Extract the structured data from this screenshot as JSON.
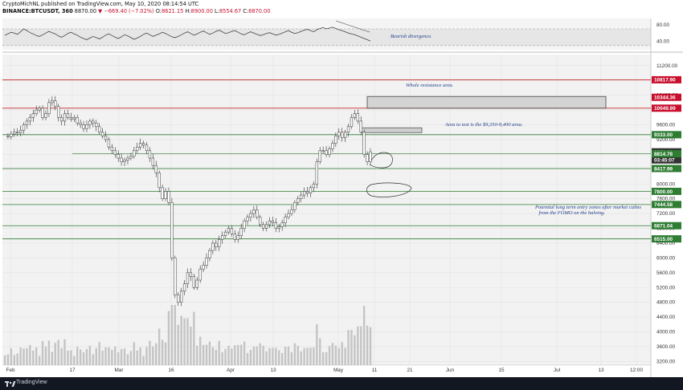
{
  "header": {
    "line1": "CryptoMichNL published on TradingView.com, May 10, 2020 08:14:54 UTC",
    "symbol": "BINANCE:BTCUSDT, 360",
    "price": "8870.00",
    "change": "▼ −669.40 (−7.02%)",
    "ohlc": [
      {
        "k": "O:",
        "v": "8621.15"
      },
      {
        "k": "H:",
        "v": "8900.00"
      },
      {
        "k": "L:",
        "v": "8554.67"
      },
      {
        "k": "C:",
        "v": "8870.00"
      }
    ]
  },
  "colors": {
    "up": "#26a69a",
    "down": "#ef5350",
    "price_label_red": "#c8102e",
    "price_label_green": "#2e7d32",
    "annotation": "#1f3c8c",
    "resistance_line": "#c62828",
    "support_line": "#2e7d32",
    "current_price": "#333333"
  },
  "footer": {
    "brand": "TradingView"
  },
  "chart_data": {
    "type": "line",
    "series": [
      {
        "values": [
          9300,
          9280,
          9350,
          9400,
          9380,
          9450,
          9600,
          9700,
          9800,
          9900,
          10000,
          10050,
          9800,
          9900,
          10200,
          10250,
          10100,
          9800,
          9700,
          9900,
          9800,
          9750,
          9800,
          9650,
          9600,
          9500,
          9600,
          9700,
          9650,
          9550,
          9400,
          9300,
          9200,
          9000,
          8900,
          8800,
          8700,
          8600,
          8650,
          8700,
          8750,
          8900,
          9000,
          9100,
          9050,
          8900,
          8700,
          8500,
          8300,
          7900,
          7600,
          7800,
          7500,
          6000,
          5000,
          4800,
          5100,
          5300,
          5600,
          5500,
          5200,
          5400,
          5700,
          5800,
          6000,
          6200,
          6400,
          6300,
          6500,
          6600,
          6700,
          6800,
          6650,
          6500,
          6600,
          6800,
          7000,
          7100,
          7200,
          7300,
          7100,
          6900,
          6800,
          6900,
          7000,
          6950,
          6800,
          6850,
          6950,
          7100,
          7200,
          7300,
          7500,
          7600,
          7700,
          7800,
          7750,
          7900,
          8000,
          8600,
          8900,
          8900,
          8800,
          8950,
          9100,
          9300,
          9400,
          9250,
          9400,
          9550,
          9800,
          9900,
          9700,
          9400,
          8800,
          8600,
          8870
        ]
      },
      {
        "name": "RSI",
        "values": [
          55,
          58,
          62,
          60,
          57,
          63,
          70,
          66,
          61,
          58,
          54,
          52,
          56,
          60,
          64,
          61,
          58,
          53,
          50,
          54,
          59,
          62,
          58,
          55,
          50,
          47,
          44,
          48,
          52,
          49,
          46,
          50,
          55,
          58,
          54,
          50,
          47,
          51,
          56,
          53,
          49,
          45,
          48,
          52,
          57,
          60,
          56,
          52,
          55,
          58,
          62,
          59,
          55,
          51,
          49,
          52,
          56,
          60,
          63,
          59,
          55,
          58,
          62,
          65,
          61,
          57,
          60,
          64,
          67,
          63,
          59,
          61,
          64,
          66,
          62,
          58,
          56,
          60,
          63,
          60,
          57,
          54,
          56,
          59,
          61,
          58,
          55,
          57,
          60,
          63,
          66,
          62,
          59,
          61,
          64,
          67,
          69,
          66,
          63,
          68,
          71,
          73,
          70,
          72,
          74,
          71,
          68,
          66,
          63,
          60,
          58,
          56,
          53,
          50,
          47,
          44,
          41
        ]
      }
    ],
    "title": "",
    "xlabel": "",
    "ylabel": "",
    "x_ticks": [
      "Feb",
      "17",
      "Mar",
      "16",
      "Apr",
      "13",
      "May",
      "11",
      "21",
      "Jun",
      "15",
      "Jul",
      "13",
      "12:00"
    ],
    "y_ticks": [
      "3200.00",
      "3600.00",
      "4000.00",
      "4400.00",
      "4800.00",
      "5200.00",
      "5600.00",
      "6000.00",
      "6400.00",
      "6800.00",
      "7200.00",
      "7600.00",
      "8000.00",
      "8400.00",
      "8800.00",
      "9200.00",
      "9600.00",
      "10000.00",
      "10400.00",
      "10800.00",
      "11200.00"
    ],
    "rsi_ticks": [
      "80.00",
      "40.00"
    ],
    "ylim": [
      3100,
      11500
    ],
    "rsi_ylim": [
      20,
      95
    ],
    "price_labels": [
      {
        "text": "10817.90",
        "value": 10817.9,
        "kind": "red"
      },
      {
        "text": "10344.36",
        "value": 10344.36,
        "kind": "red"
      },
      {
        "text": "10049.99",
        "value": 10049.99,
        "kind": "red"
      },
      {
        "text": "9333.00",
        "value": 9333,
        "kind": "green"
      },
      {
        "text": "8870.00",
        "value": 8870,
        "kind": "current"
      },
      {
        "text": "03:45:07",
        "value": 8650,
        "kind": "timer"
      },
      {
        "text": "8814.78",
        "value": 8814.78,
        "kind": "green"
      },
      {
        "text": "8417.99",
        "value": 8417.99,
        "kind": "green"
      },
      {
        "text": "7800.00",
        "value": 7800,
        "kind": "green"
      },
      {
        "text": "7444.58",
        "value": 7444.58,
        "kind": "green"
      },
      {
        "text": "6871.04",
        "value": 6871.04,
        "kind": "green"
      },
      {
        "text": "6515.00",
        "value": 6515,
        "kind": "green"
      }
    ],
    "levels": [
      {
        "value": 10817.9,
        "kind": "red"
      },
      {
        "value": 10049.99,
        "kind": "red"
      },
      {
        "value": 9333,
        "kind": "green"
      },
      {
        "value": 8417.99,
        "kind": "green"
      },
      {
        "value": 7800,
        "kind": "green"
      },
      {
        "value": 7444.58,
        "kind": "green"
      },
      {
        "value": 6871.04,
        "kind": "green"
      },
      {
        "value": 6515,
        "kind": "green"
      }
    ],
    "annotations": [
      {
        "text": "Bearish divergence."
      },
      {
        "text": "Whole resistance area."
      },
      {
        "text": "Area to test is the $9,350-9,400 area."
      },
      {
        "text": "Potential long term entry zones after market calms"
      },
      {
        "text": "from the FOMO on the halving."
      }
    ]
  }
}
